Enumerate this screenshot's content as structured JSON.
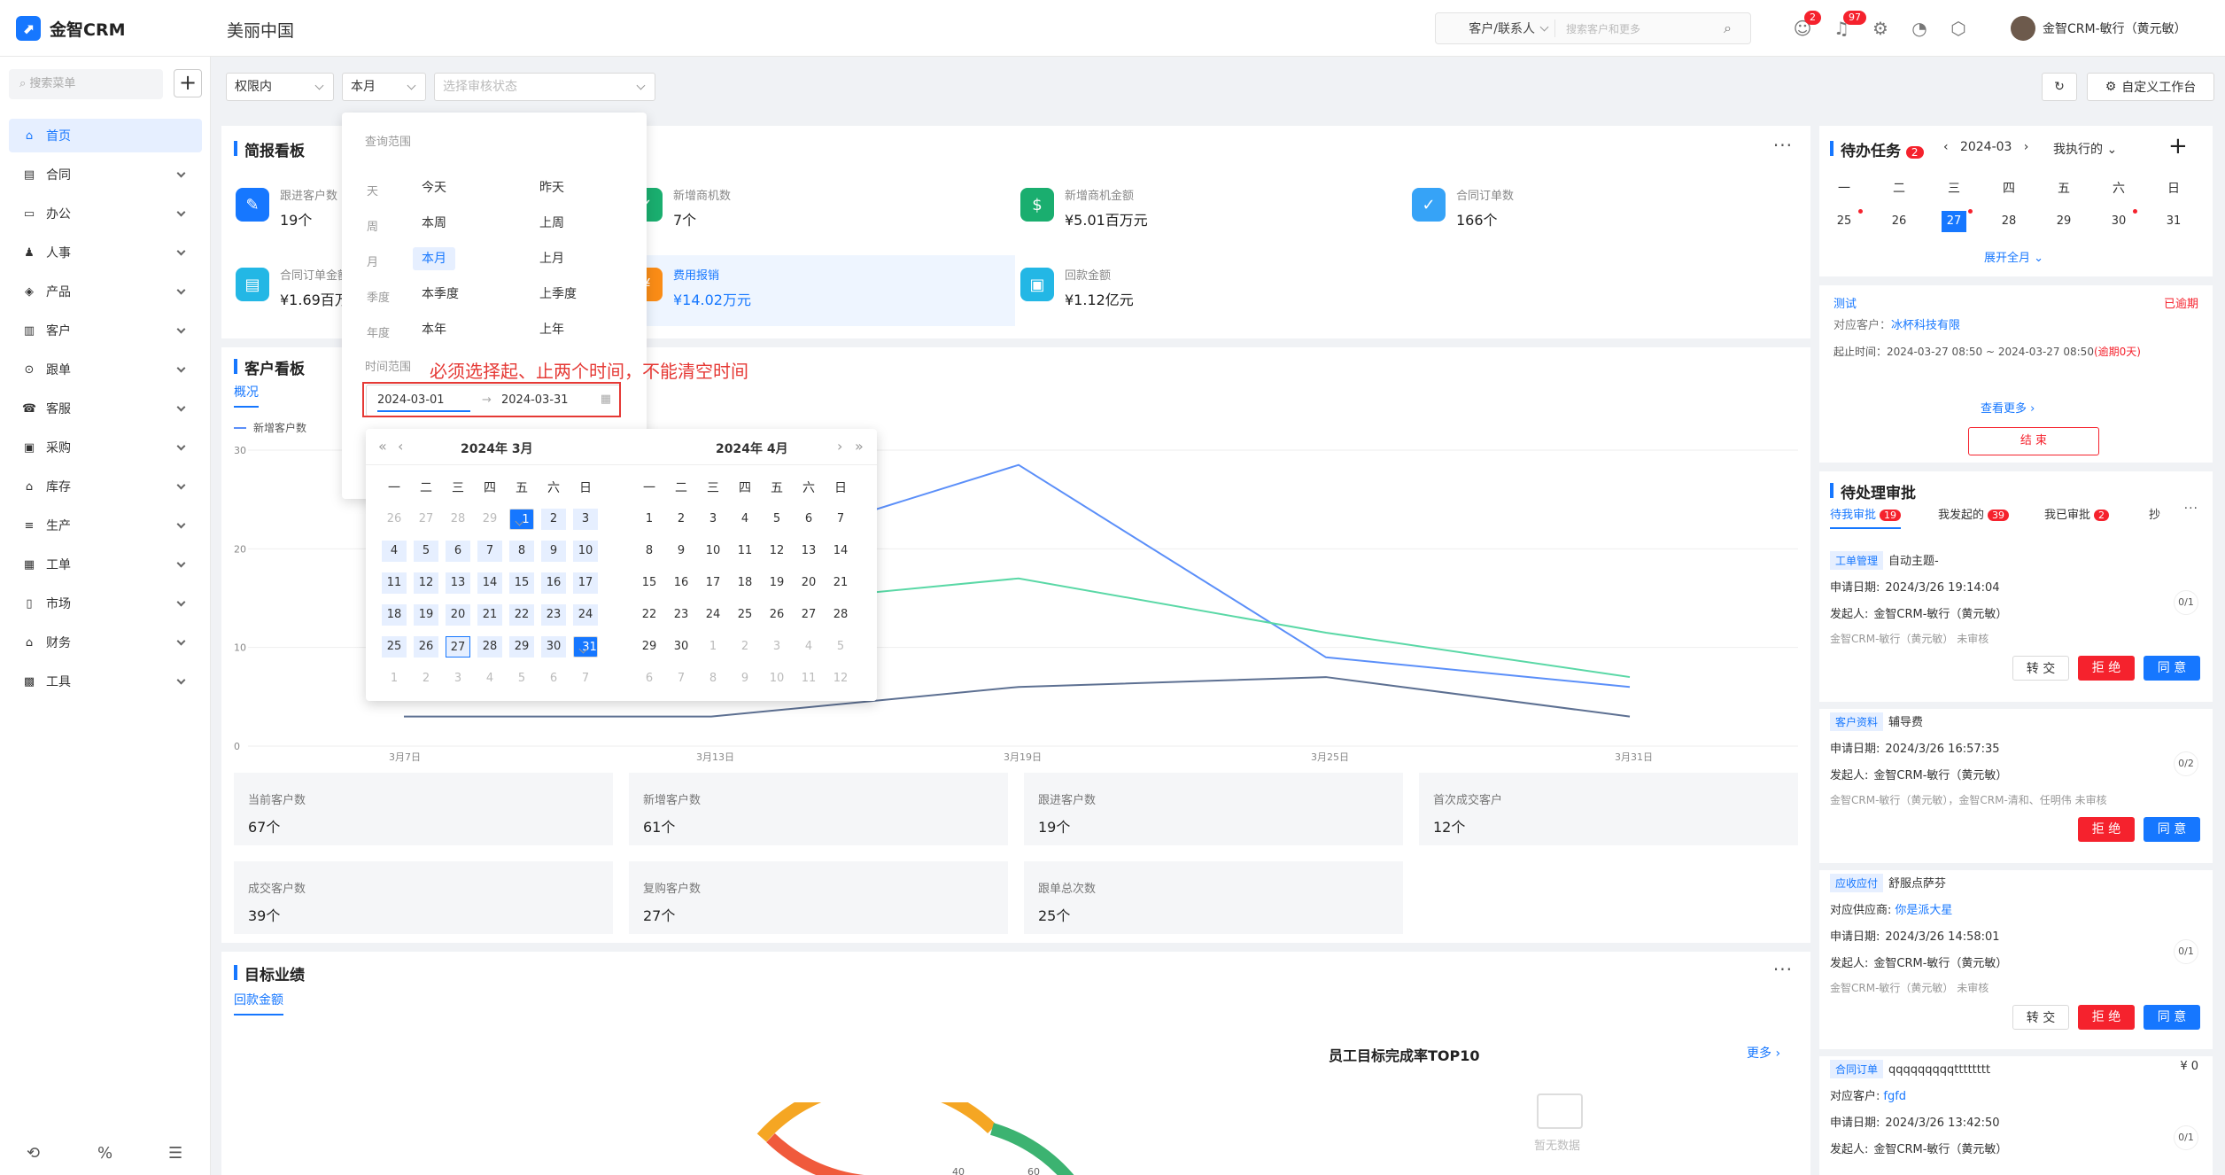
{
  "app": {
    "logo_text": "金智CRM",
    "company": "美丽中国"
  },
  "header": {
    "search_type": "客户/联系人",
    "search_placeholder": "搜索客户和更多",
    "badge_msg": "2",
    "badge_notice": "97",
    "user_name": "金智CRM-敏行（黄元敏）"
  },
  "sidebar": {
    "search_placeholder": "搜索菜单",
    "items": [
      {
        "label": "首页",
        "icon": "home-icon"
      },
      {
        "label": "合同",
        "icon": "contract-icon"
      },
      {
        "label": "办公",
        "icon": "office-icon"
      },
      {
        "label": "人事",
        "icon": "hr-icon"
      },
      {
        "label": "产品",
        "icon": "product-icon"
      },
      {
        "label": "客户",
        "icon": "customer-icon"
      },
      {
        "label": "跟单",
        "icon": "follow-icon"
      },
      {
        "label": "客服",
        "icon": "service-icon"
      },
      {
        "label": "采购",
        "icon": "purchase-icon"
      },
      {
        "label": "库存",
        "icon": "inventory-icon"
      },
      {
        "label": "生产",
        "icon": "production-icon"
      },
      {
        "label": "工单",
        "icon": "workorder-icon"
      },
      {
        "label": "市场",
        "icon": "market-icon"
      },
      {
        "label": "财务",
        "icon": "finance-icon"
      },
      {
        "label": "工具",
        "icon": "tools-icon"
      }
    ]
  },
  "filters": {
    "scope": "权限内",
    "period": "本月",
    "audit_placeholder": "选择审核状态",
    "custom_label": "自定义工作台"
  },
  "brief": {
    "title": "简报看板",
    "kpis": [
      {
        "label": "跟进客户数",
        "value": "19个"
      },
      {
        "label": "新增商机数",
        "value": "7个"
      },
      {
        "label": "新增商机金额",
        "value": "¥5.01百万元"
      },
      {
        "label": "合同订单数",
        "value": "166个"
      },
      {
        "label": "合同订单金额",
        "value": "¥1.69百万"
      },
      {
        "label": "费用报销",
        "value": "¥14.02万元"
      },
      {
        "label": "回款金额",
        "value": "¥1.12亿元"
      }
    ]
  },
  "customer_board": {
    "title": "客户看板",
    "tab": "概况",
    "legend": "新增客户数",
    "stats": [
      {
        "label": "当前客户数",
        "value": "67个"
      },
      {
        "label": "新增客户数",
        "value": "61个"
      },
      {
        "label": "跟进客户数",
        "value": "19个"
      },
      {
        "label": "首次成交客户",
        "value": "12个"
      },
      {
        "label": "成交客户数",
        "value": "39个"
      },
      {
        "label": "复购客户数",
        "value": "27个"
      },
      {
        "label": "跟单总次数",
        "value": "25个"
      }
    ]
  },
  "chart_data": {
    "type": "line",
    "x": [
      "3月7日",
      "3月13日",
      "3月19日",
      "3月25日",
      "3月31日"
    ],
    "ylim": [
      0,
      30
    ],
    "yticks": [
      0,
      10,
      20,
      30
    ],
    "grid": true,
    "series": [
      {
        "name": "新增客户数",
        "color": "#5b8ff9",
        "values": [
          null,
          null,
          28.5,
          9,
          6
        ]
      },
      {
        "color": "#5ad8a6",
        "values": [
          null,
          14,
          17,
          11.5,
          7
        ]
      },
      {
        "color": "#5d7092",
        "values": [
          3,
          3,
          6,
          7,
          3
        ]
      }
    ]
  },
  "target": {
    "title": "目标业绩",
    "tab": "回款金额",
    "top10_title": "员工目标完成率TOP10",
    "more": "更多",
    "empty": "暂无数据",
    "gauge_ticks": [
      "40",
      "60"
    ]
  },
  "popup": {
    "section": "查询范围",
    "rows": [
      {
        "k": "天",
        "a": "今天",
        "b": "昨天"
      },
      {
        "k": "周",
        "a": "本周",
        "b": "上周"
      },
      {
        "k": "月",
        "a": "本月",
        "b": "上月"
      },
      {
        "k": "季度",
        "a": "本季度",
        "b": "上季度"
      },
      {
        "k": "年度",
        "a": "本年",
        "b": "上年"
      }
    ],
    "range_label": "时间范围",
    "start": "2024-03-01",
    "end": "2024-03-31",
    "annotation": "必须选择起、止两个时间，不能清空时间"
  },
  "calendar": {
    "left_title": "2024年  3月",
    "right_title": "2024年  4月",
    "weekdays": [
      "一",
      "二",
      "三",
      "四",
      "五",
      "六",
      "日"
    ],
    "left_days": [
      26,
      27,
      28,
      29,
      1,
      2,
      3,
      4,
      5,
      6,
      7,
      8,
      9,
      10,
      11,
      12,
      13,
      14,
      15,
      16,
      17,
      18,
      19,
      20,
      21,
      22,
      23,
      24,
      25,
      26,
      27,
      28,
      29,
      30,
      31,
      1,
      2,
      3,
      4,
      5,
      6,
      7
    ],
    "right_days": [
      1,
      2,
      3,
      4,
      5,
      6,
      7,
      8,
      9,
      10,
      11,
      12,
      13,
      14,
      15,
      16,
      17,
      18,
      19,
      20,
      21,
      22,
      23,
      24,
      25,
      26,
      27,
      28,
      29,
      30,
      1,
      2,
      3,
      4,
      5,
      6,
      7,
      8,
      9,
      10,
      11,
      12
    ]
  },
  "todo": {
    "title": "待办任务",
    "count": "2",
    "month": "2024-03",
    "filter": "我执行的",
    "weekdays": [
      "一",
      "二",
      "三",
      "四",
      "五",
      "六",
      "日"
    ],
    "days": [
      "25",
      "26",
      "27",
      "28",
      "29",
      "30",
      "31"
    ],
    "expand": "展开全月",
    "task_name": "测试",
    "overdue": "已逾期",
    "customer_label": "对应客户：",
    "customer": "冰杯科技有限",
    "time_label": "起止时间：2024-03-27 08:50 ~ 2024-03-27 08:50",
    "time_over": "(逾期0天)",
    "more": "查看更多",
    "finish": "结 束"
  },
  "approval": {
    "title": "待处理审批",
    "tabs": [
      {
        "label": "待我审批",
        "count": "19"
      },
      {
        "label": "我发起的",
        "count": "39"
      },
      {
        "label": "我已审批",
        "count": "2"
      },
      {
        "label": "抄"
      }
    ],
    "items": [
      {
        "tag": "工单管理",
        "name": "自动主题-",
        "l1": "申请日期:",
        "v1": "2024/3/26 19:14:04",
        "l2": "发起人:",
        "v2": "金智CRM-敏行（黄元敏）",
        "status": "金智CRM-敏行（黄元敏） 未审核",
        "frac": "0/1"
      },
      {
        "tag": "客户资料",
        "name": "辅导费",
        "l1": "申请日期:",
        "v1": "2024/3/26 16:57:35",
        "l2": "发起人:",
        "v2": "金智CRM-敏行（黄元敏）",
        "status": "金智CRM-敏行（黄元敏），金智CRM-清和、任明伟 未审核",
        "frac": "0/2"
      },
      {
        "tag": "应收应付",
        "name": "舒服点萨芬",
        "l0": "对应供应商:",
        "v0": "你是派大星",
        "l1": "申请日期:",
        "v1": "2024/3/26 14:58:01",
        "l2": "发起人:",
        "v2": "金智CRM-敏行（黄元敏）",
        "status": "金智CRM-敏行（黄元敏） 未审核",
        "frac": "0/1"
      },
      {
        "tag": "合同订单",
        "name": "qqqqqqqqqtttttttt",
        "amount": "¥ 0",
        "l0": "对应客户:",
        "v0": "fgfd",
        "l1": "申请日期:",
        "v1": "2024/3/26 13:42:50",
        "l2": "发起人:",
        "v2": "金智CRM-敏行（黄元敏）",
        "frac": "0/1"
      }
    ],
    "btn_transfer": "转 交",
    "btn_reject": "拒 绝",
    "btn_agree": "同 意"
  }
}
